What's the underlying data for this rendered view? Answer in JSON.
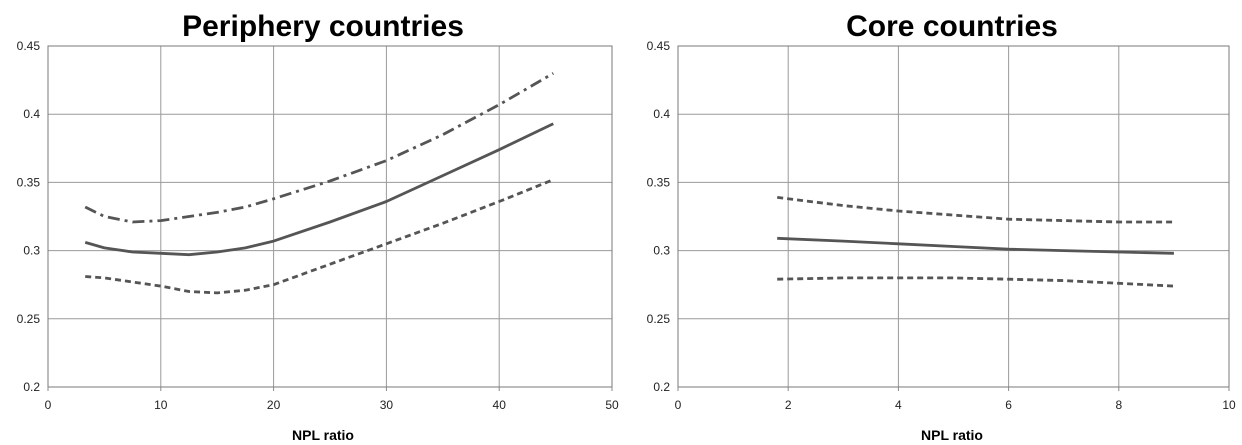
{
  "chart_data": [
    {
      "type": "line",
      "title": "Periphery countries",
      "xlabel": "NPL ratio",
      "ylabel": "",
      "xlim": [
        0,
        50
      ],
      "ylim": [
        0.2,
        0.45
      ],
      "xticks": [
        0,
        10,
        20,
        30,
        40,
        50
      ],
      "yticks": [
        0.2,
        0.25,
        0.3,
        0.35,
        0.4,
        0.45
      ],
      "xtick_labels": [
        "0",
        "10",
        "20",
        "30",
        "40",
        "50"
      ],
      "ytick_labels": [
        "0.2",
        "0.25",
        "0.3",
        "0.35",
        "0.4",
        "0.45"
      ],
      "grid": true,
      "legend": "none",
      "series": [
        {
          "style": "solid",
          "color": "#555555",
          "x": [
            3.3,
            5,
            7.5,
            10,
            12.5,
            15,
            17.5,
            20,
            25,
            30,
            35,
            40,
            44.8
          ],
          "y": [
            0.306,
            0.302,
            0.299,
            0.298,
            0.297,
            0.299,
            0.302,
            0.307,
            0.321,
            0.336,
            0.355,
            0.374,
            0.393
          ]
        },
        {
          "style": "dashdot",
          "color": "#555555",
          "x": [
            3.3,
            5,
            7.5,
            10,
            12.5,
            15,
            17.5,
            20,
            25,
            30,
            35,
            40,
            44.8
          ],
          "y": [
            0.332,
            0.325,
            0.321,
            0.322,
            0.325,
            0.328,
            0.332,
            0.338,
            0.351,
            0.366,
            0.385,
            0.407,
            0.43
          ]
        },
        {
          "style": "dashed",
          "color": "#555555",
          "x": [
            3.3,
            5,
            7.5,
            10,
            12.5,
            15,
            17.5,
            20,
            25,
            30,
            35,
            40,
            44.8
          ],
          "y": [
            0.281,
            0.28,
            0.277,
            0.274,
            0.27,
            0.269,
            0.271,
            0.275,
            0.29,
            0.305,
            0.32,
            0.336,
            0.352
          ]
        }
      ]
    },
    {
      "type": "line",
      "title": "Core countries",
      "xlabel": "NPL ratio",
      "ylabel": "",
      "xlim": [
        0,
        10
      ],
      "ylim": [
        0.2,
        0.45
      ],
      "xticks": [
        0,
        2,
        4,
        6,
        8,
        10
      ],
      "yticks": [
        0.2,
        0.25,
        0.3,
        0.35,
        0.4,
        0.45
      ],
      "xtick_labels": [
        "0",
        "2",
        "4",
        "6",
        "8",
        "10"
      ],
      "ytick_labels": [
        "0.2",
        "0.25",
        "0.3",
        "0.35",
        "0.4",
        "0.45"
      ],
      "grid": true,
      "legend": "none",
      "series": [
        {
          "style": "solid",
          "color": "#555555",
          "x": [
            1.8,
            3,
            4,
            5,
            6,
            7,
            8,
            9
          ],
          "y": [
            0.309,
            0.307,
            0.305,
            0.303,
            0.301,
            0.3,
            0.299,
            0.298
          ]
        },
        {
          "style": "dashed",
          "color": "#555555",
          "x": [
            1.8,
            3,
            4,
            5,
            6,
            7,
            8,
            9
          ],
          "y": [
            0.339,
            0.333,
            0.329,
            0.326,
            0.323,
            0.322,
            0.321,
            0.321
          ]
        },
        {
          "style": "dashed",
          "color": "#555555",
          "x": [
            1.8,
            3,
            4,
            5,
            6,
            7,
            8,
            9
          ],
          "y": [
            0.279,
            0.28,
            0.28,
            0.28,
            0.279,
            0.278,
            0.276,
            0.274
          ]
        }
      ]
    }
  ]
}
